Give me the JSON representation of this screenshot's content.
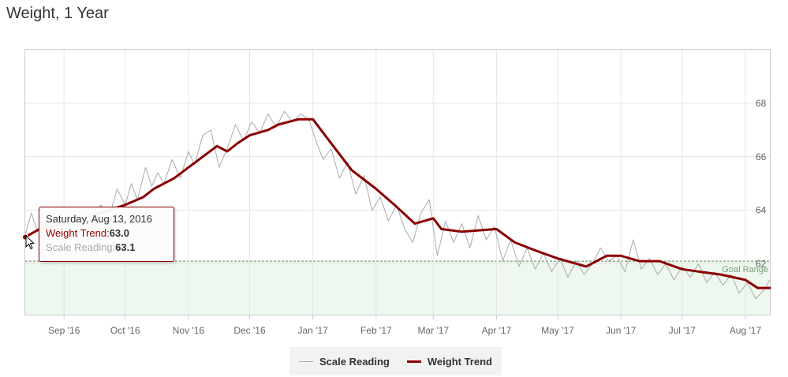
{
  "title": "Weight, 1 Year",
  "chart_data": {
    "type": "line",
    "title": "Weight, 1 Year",
    "xlabel": "",
    "ylabel": "",
    "x_range": [
      "2016-08-13",
      "2017-08-13"
    ],
    "ylim": [
      60.1,
      70
    ],
    "y_ticks": [
      62,
      64,
      66,
      68
    ],
    "x_ticks": [
      {
        "date": "2016-09-01",
        "label": "Sep '16"
      },
      {
        "date": "2016-10-01",
        "label": "Oct '16"
      },
      {
        "date": "2016-11-01",
        "label": "Nov '16"
      },
      {
        "date": "2016-12-01",
        "label": "Dec '16"
      },
      {
        "date": "2017-01-01",
        "label": "Jan '17"
      },
      {
        "date": "2017-02-01",
        "label": "Feb '17"
      },
      {
        "date": "2017-03-01",
        "label": "Mar '17"
      },
      {
        "date": "2017-04-01",
        "label": "Apr '17"
      },
      {
        "date": "2017-05-01",
        "label": "May '17"
      },
      {
        "date": "2017-06-01",
        "label": "Jun '17"
      },
      {
        "date": "2017-07-01",
        "label": "Jul '17"
      },
      {
        "date": "2017-08-01",
        "label": "Aug '17"
      }
    ],
    "grid": true,
    "legend_position": "bottom-center",
    "goal_range": {
      "label": "Goal Range",
      "from": 60.1,
      "to": 62.1
    },
    "series": [
      {
        "name": "Weight Trend",
        "color": "#8b0000",
        "points": [
          [
            "2016-08-13",
            63.0
          ],
          [
            "2016-08-20",
            63.3
          ],
          [
            "2016-09-01",
            63.5
          ],
          [
            "2016-09-15",
            63.8
          ],
          [
            "2016-10-01",
            64.2
          ],
          [
            "2016-10-10",
            64.5
          ],
          [
            "2016-10-15",
            64.8
          ],
          [
            "2016-10-25",
            65.2
          ],
          [
            "2016-11-01",
            65.6
          ],
          [
            "2016-11-15",
            66.4
          ],
          [
            "2016-11-20",
            66.2
          ],
          [
            "2016-11-25",
            66.5
          ],
          [
            "2016-12-01",
            66.8
          ],
          [
            "2016-12-10",
            67.0
          ],
          [
            "2016-12-15",
            67.2
          ],
          [
            "2016-12-25",
            67.4
          ],
          [
            "2017-01-01",
            67.4
          ],
          [
            "2017-01-10",
            66.5
          ],
          [
            "2017-01-20",
            65.5
          ],
          [
            "2017-02-01",
            64.8
          ],
          [
            "2017-02-10",
            64.2
          ],
          [
            "2017-02-20",
            63.5
          ],
          [
            "2017-03-01",
            63.7
          ],
          [
            "2017-03-05",
            63.3
          ],
          [
            "2017-03-15",
            63.2
          ],
          [
            "2017-04-01",
            63.3
          ],
          [
            "2017-04-10",
            62.8
          ],
          [
            "2017-04-20",
            62.5
          ],
          [
            "2017-05-01",
            62.2
          ],
          [
            "2017-05-15",
            61.9
          ],
          [
            "2017-05-25",
            62.3
          ],
          [
            "2017-06-01",
            62.3
          ],
          [
            "2017-06-10",
            62.1
          ],
          [
            "2017-06-20",
            62.1
          ],
          [
            "2017-07-01",
            61.8
          ],
          [
            "2017-07-10",
            61.7
          ],
          [
            "2017-07-20",
            61.6
          ],
          [
            "2017-08-01",
            61.4
          ],
          [
            "2017-08-07",
            61.1
          ],
          [
            "2017-08-13",
            61.1
          ]
        ]
      },
      {
        "name": "Scale Reading",
        "color": "#aaaaaa",
        "points": [
          [
            "2016-08-13",
            63.1
          ],
          [
            "2016-08-16",
            63.9
          ],
          [
            "2016-08-19",
            63.2
          ],
          [
            "2016-08-22",
            63.6
          ],
          [
            "2016-08-26",
            63.0
          ],
          [
            "2016-08-30",
            63.4
          ],
          [
            "2016-09-03",
            63.9
          ],
          [
            "2016-09-07",
            63.3
          ],
          [
            "2016-09-11",
            64.0
          ],
          [
            "2016-09-15",
            63.5
          ],
          [
            "2016-09-19",
            64.2
          ],
          [
            "2016-09-23",
            63.7
          ],
          [
            "2016-09-27",
            64.8
          ],
          [
            "2016-10-01",
            64.2
          ],
          [
            "2016-10-04",
            65.0
          ],
          [
            "2016-10-07",
            64.4
          ],
          [
            "2016-10-11",
            65.6
          ],
          [
            "2016-10-14",
            64.9
          ],
          [
            "2016-10-17",
            65.4
          ],
          [
            "2016-10-20",
            65.0
          ],
          [
            "2016-10-24",
            65.9
          ],
          [
            "2016-10-28",
            65.2
          ],
          [
            "2016-11-01",
            66.2
          ],
          [
            "2016-11-04",
            65.7
          ],
          [
            "2016-11-08",
            66.8
          ],
          [
            "2016-11-12",
            67.0
          ],
          [
            "2016-11-16",
            65.6
          ],
          [
            "2016-11-20",
            66.3
          ],
          [
            "2016-11-24",
            67.2
          ],
          [
            "2016-11-28",
            66.6
          ],
          [
            "2016-12-02",
            67.3
          ],
          [
            "2016-12-06",
            66.9
          ],
          [
            "2016-12-10",
            67.6
          ],
          [
            "2016-12-14",
            67.1
          ],
          [
            "2016-12-18",
            67.7
          ],
          [
            "2016-12-22",
            67.3
          ],
          [
            "2016-12-26",
            67.6
          ],
          [
            "2016-12-30",
            67.4
          ],
          [
            "2017-01-03",
            66.5
          ],
          [
            "2017-01-06",
            65.9
          ],
          [
            "2017-01-10",
            66.3
          ],
          [
            "2017-01-14",
            65.2
          ],
          [
            "2017-01-18",
            65.8
          ],
          [
            "2017-01-22",
            64.6
          ],
          [
            "2017-01-26",
            65.3
          ],
          [
            "2017-01-30",
            64.0
          ],
          [
            "2017-02-03",
            64.5
          ],
          [
            "2017-02-07",
            63.6
          ],
          [
            "2017-02-11",
            64.2
          ],
          [
            "2017-02-15",
            63.3
          ],
          [
            "2017-02-19",
            62.8
          ],
          [
            "2017-02-23",
            63.9
          ],
          [
            "2017-02-27",
            64.4
          ],
          [
            "2017-03-03",
            62.3
          ],
          [
            "2017-03-07",
            63.6
          ],
          [
            "2017-03-11",
            62.8
          ],
          [
            "2017-03-15",
            63.5
          ],
          [
            "2017-03-19",
            62.6
          ],
          [
            "2017-03-23",
            63.8
          ],
          [
            "2017-03-27",
            62.9
          ],
          [
            "2017-03-31",
            63.4
          ],
          [
            "2017-04-04",
            62.1
          ],
          [
            "2017-04-08",
            62.9
          ],
          [
            "2017-04-12",
            61.9
          ],
          [
            "2017-04-16",
            62.6
          ],
          [
            "2017-04-20",
            61.8
          ],
          [
            "2017-04-24",
            62.4
          ],
          [
            "2017-04-28",
            61.7
          ],
          [
            "2017-05-02",
            62.2
          ],
          [
            "2017-05-06",
            61.5
          ],
          [
            "2017-05-10",
            62.1
          ],
          [
            "2017-05-14",
            61.6
          ],
          [
            "2017-05-18",
            62.0
          ],
          [
            "2017-05-22",
            62.6
          ],
          [
            "2017-05-26",
            62.1
          ],
          [
            "2017-05-30",
            62.3
          ],
          [
            "2017-06-03",
            61.7
          ],
          [
            "2017-06-07",
            62.9
          ],
          [
            "2017-06-11",
            61.8
          ],
          [
            "2017-06-15",
            62.2
          ],
          [
            "2017-06-19",
            61.6
          ],
          [
            "2017-06-23",
            62.0
          ],
          [
            "2017-06-27",
            61.4
          ],
          [
            "2017-07-01",
            61.9
          ],
          [
            "2017-07-05",
            61.5
          ],
          [
            "2017-07-09",
            62.0
          ],
          [
            "2017-07-13",
            61.3
          ],
          [
            "2017-07-17",
            61.7
          ],
          [
            "2017-07-21",
            61.2
          ],
          [
            "2017-07-25",
            61.6
          ],
          [
            "2017-07-29",
            60.9
          ],
          [
            "2017-08-02",
            61.3
          ],
          [
            "2017-08-06",
            60.7
          ],
          [
            "2017-08-10",
            61.0
          ],
          [
            "2017-08-13",
            61.4
          ]
        ]
      }
    ]
  },
  "legend": {
    "items": [
      {
        "name": "Scale Reading",
        "color": "#aaaaaa"
      },
      {
        "name": "Weight Trend",
        "color": "#8b0000"
      }
    ]
  },
  "tooltip": {
    "date": "Saturday, Aug 13, 2016",
    "trend_label": "Weight Trend:",
    "trend_value": "63.0",
    "scale_label": "Scale Reading:",
    "scale_value": "63.1"
  }
}
